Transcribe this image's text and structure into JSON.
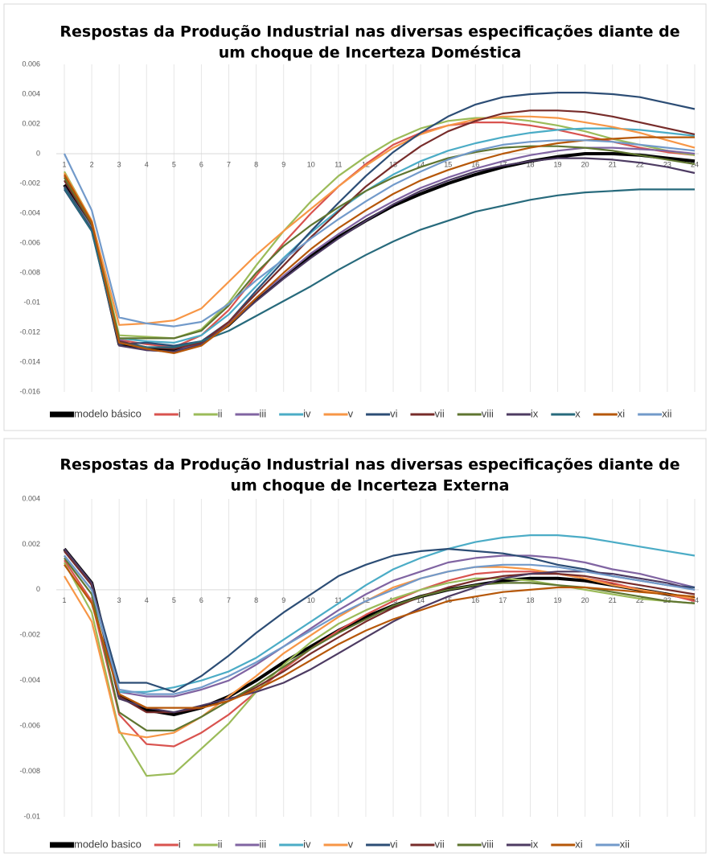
{
  "chart_data": [
    {
      "type": "line",
      "title": [
        "Respostas da Produção Industrial nas diversas especificações  diante de",
        "um choque de Incerteza Doméstica"
      ],
      "categories": [
        1,
        2,
        3,
        4,
        5,
        6,
        7,
        8,
        9,
        10,
        11,
        12,
        13,
        14,
        15,
        16,
        17,
        18,
        19,
        20,
        21,
        22,
        23,
        24
      ],
      "ylim": [
        -0.016,
        0.006
      ],
      "yticks": [
        0.006,
        0.004,
        0.002,
        0,
        -0.002,
        -0.004,
        -0.006,
        -0.008,
        -0.01,
        -0.012,
        -0.014,
        -0.016
      ],
      "grid": true,
      "legend": "bottom",
      "series": [
        {
          "name": "modelo básico",
          "color": "#000000",
          "values": [
            -0.0021,
            -0.0048,
            -0.0128,
            -0.0131,
            -0.0132,
            -0.0127,
            -0.0115,
            -0.0098,
            -0.0083,
            -0.0069,
            -0.0056,
            -0.0045,
            -0.0035,
            -0.0027,
            -0.002,
            -0.0014,
            -0.0009,
            -0.0005,
            -0.0002,
            0,
            0,
            -0.0001,
            -0.0003,
            -0.0005
          ]
        },
        {
          "name": "i",
          "color": "#d9534f",
          "values": [
            -0.0015,
            -0.0045,
            -0.0125,
            -0.0128,
            -0.013,
            -0.0122,
            -0.0105,
            -0.0082,
            -0.006,
            -0.004,
            -0.0022,
            -0.0007,
            0.0006,
            0.0014,
            0.0019,
            0.0021,
            0.0021,
            0.0019,
            0.0016,
            0.0012,
            0.0008,
            0.0004,
            0.0001,
            -0.0001
          ]
        },
        {
          "name": "ii",
          "color": "#9bbb59",
          "values": [
            -0.0012,
            -0.0045,
            -0.0122,
            -0.0123,
            -0.0124,
            -0.0118,
            -0.01,
            -0.0075,
            -0.0052,
            -0.0032,
            -0.0015,
            -0.0002,
            0.0009,
            0.0017,
            0.0022,
            0.0024,
            0.0024,
            0.0022,
            0.0019,
            0.0015,
            0.001,
            0.0006,
            0.0002,
            -0.0001
          ]
        },
        {
          "name": "iii",
          "color": "#8064a2",
          "values": [
            -0.0022,
            -0.005,
            -0.0125,
            -0.0132,
            -0.0133,
            -0.0127,
            -0.0114,
            -0.0097,
            -0.0082,
            -0.0067,
            -0.0054,
            -0.0042,
            -0.0032,
            -0.0023,
            -0.0016,
            -0.001,
            -0.0005,
            -0.0001,
            0.0002,
            0.0004,
            0.0004,
            0.0003,
            0.0002,
            0
          ]
        },
        {
          "name": "iv",
          "color": "#4bacc6",
          "values": [
            -0.0022,
            -0.005,
            -0.0124,
            -0.0126,
            -0.0127,
            -0.0122,
            -0.0108,
            -0.0089,
            -0.007,
            -0.0053,
            -0.0038,
            -0.0025,
            -0.0014,
            -0.0005,
            0.0002,
            0.0007,
            0.0011,
            0.0014,
            0.0016,
            0.0017,
            0.0017,
            0.0016,
            0.0014,
            0.0012
          ]
        },
        {
          "name": "v",
          "color": "#f79646",
          "values": [
            -0.0013,
            -0.0045,
            -0.0115,
            -0.0114,
            -0.0112,
            -0.0104,
            -0.0086,
            -0.0068,
            -0.0052,
            -0.0037,
            -0.0022,
            -0.0008,
            0.0004,
            0.0013,
            0.0019,
            0.0023,
            0.0025,
            0.0025,
            0.0024,
            0.0021,
            0.0018,
            0.0014,
            0.0009,
            0.0004
          ]
        },
        {
          "name": "vi",
          "color": "#2c4d75",
          "values": [
            -0.0024,
            -0.0052,
            -0.0128,
            -0.0127,
            -0.0129,
            -0.0126,
            -0.0113,
            -0.0092,
            -0.0072,
            -0.0052,
            -0.0033,
            -0.0015,
            0.0001,
            0.0014,
            0.0025,
            0.0033,
            0.0038,
            0.004,
            0.0041,
            0.0041,
            0.004,
            0.0038,
            0.0034,
            0.003
          ]
        },
        {
          "name": "vii",
          "color": "#772c2a",
          "values": [
            -0.0018,
            -0.0048,
            -0.0126,
            -0.013,
            -0.0131,
            -0.0127,
            -0.0113,
            -0.0094,
            -0.0075,
            -0.0056,
            -0.0039,
            -0.0022,
            -0.0008,
            0.0005,
            0.0015,
            0.0022,
            0.0027,
            0.0029,
            0.0029,
            0.0028,
            0.0025,
            0.0021,
            0.0017,
            0.0013
          ]
        },
        {
          "name": "viii",
          "color": "#5f7530",
          "values": [
            -0.0016,
            -0.0047,
            -0.0124,
            -0.0124,
            -0.0124,
            -0.0119,
            -0.0102,
            -0.008,
            -0.0062,
            -0.0048,
            -0.0036,
            -0.0025,
            -0.0016,
            -0.0009,
            -0.0003,
            0.0001,
            0.0004,
            0.0005,
            0.0005,
            0.0004,
            0.0002,
            -0.0001,
            -0.0004,
            -0.0007
          ]
        },
        {
          "name": "ix",
          "color": "#4d3b62",
          "values": [
            -0.0022,
            -0.0051,
            -0.0129,
            -0.0132,
            -0.0133,
            -0.0128,
            -0.0115,
            -0.0099,
            -0.0084,
            -0.007,
            -0.0057,
            -0.0045,
            -0.0034,
            -0.0025,
            -0.0018,
            -0.0012,
            -0.0008,
            -0.0005,
            -0.0003,
            -0.0003,
            -0.0004,
            -0.0006,
            -0.0009,
            -0.0013
          ]
        },
        {
          "name": "x",
          "color": "#276a7c",
          "values": [
            -0.0023,
            -0.0052,
            -0.0127,
            -0.013,
            -0.013,
            -0.0126,
            -0.0119,
            -0.0109,
            -0.0099,
            -0.0089,
            -0.0078,
            -0.0068,
            -0.0059,
            -0.0051,
            -0.0045,
            -0.0039,
            -0.0035,
            -0.0031,
            -0.0028,
            -0.0026,
            -0.0025,
            -0.0024,
            -0.0024,
            -0.0024
          ]
        },
        {
          "name": "xi",
          "color": "#b65708",
          "values": [
            -0.0014,
            -0.0046,
            -0.0127,
            -0.0131,
            -0.0134,
            -0.0129,
            -0.0115,
            -0.0097,
            -0.008,
            -0.0064,
            -0.005,
            -0.0038,
            -0.0027,
            -0.0018,
            -0.0011,
            -0.0005,
            0,
            0.0004,
            0.0007,
            0.0009,
            0.001,
            0.0011,
            0.0011,
            0.0011
          ]
        },
        {
          "name": "xii",
          "color": "#729aca",
          "values": [
            0,
            -0.0038,
            -0.011,
            -0.0114,
            -0.0116,
            -0.0113,
            -0.0101,
            -0.0085,
            -0.0071,
            -0.0057,
            -0.0044,
            -0.0032,
            -0.0021,
            -0.0012,
            -0.0004,
            0.0002,
            0.0006,
            0.0008,
            0.0009,
            0.0009,
            0.0008,
            0.0006,
            0.0004,
            0.0002
          ]
        }
      ]
    },
    {
      "type": "line",
      "title": [
        "Respostas da Produção Industrial nas diversas especificações  diante de",
        "um choque de Incerteza Externa"
      ],
      "categories": [
        1,
        2,
        3,
        4,
        5,
        6,
        7,
        8,
        9,
        10,
        11,
        12,
        13,
        14,
        15,
        16,
        17,
        18,
        19,
        20,
        21,
        22,
        23,
        24
      ],
      "ylim": [
        -0.01,
        0.004
      ],
      "yticks": [
        0.004,
        0.002,
        0,
        -0.002,
        -0.004,
        -0.006,
        -0.008,
        -0.01
      ],
      "grid": true,
      "legend": "bottom",
      "series": [
        {
          "name": "modelo basico",
          "color": "#000000",
          "values": [
            0.0018,
            0.0003,
            -0.0047,
            -0.0053,
            -0.0055,
            -0.0052,
            -0.0047,
            -0.004,
            -0.0032,
            -0.0025,
            -0.0018,
            -0.0012,
            -0.0007,
            -0.0003,
            0,
            0.0002,
            0.0004,
            0.0005,
            0.0005,
            0.0004,
            0.0002,
            0,
            -0.0002,
            -0.0004
          ]
        },
        {
          "name": "i",
          "color": "#d9534f",
          "values": [
            0.0013,
            -0.0005,
            -0.0055,
            -0.0068,
            -0.0069,
            -0.0063,
            -0.0055,
            -0.0045,
            -0.0035,
            -0.0026,
            -0.0018,
            -0.0011,
            -0.0005,
            0,
            0.0004,
            0.0007,
            0.0008,
            0.0008,
            0.0007,
            0.0005,
            0.0003,
            0,
            -0.0002,
            -0.0005
          ]
        },
        {
          "name": "ii",
          "color": "#9bbb59",
          "values": [
            0.0012,
            -0.001,
            -0.0062,
            -0.0082,
            -0.0081,
            -0.007,
            -0.0059,
            -0.0045,
            -0.0033,
            -0.0023,
            -0.0015,
            -0.0009,
            -0.0004,
            0,
            0.0003,
            0.0005,
            0.0005,
            0.0004,
            0.0002,
            0,
            -0.0002,
            -0.0004,
            -0.0005,
            -0.0006
          ]
        },
        {
          "name": "iii",
          "color": "#8064a2",
          "values": [
            0.0015,
            0,
            -0.0045,
            -0.0047,
            -0.0047,
            -0.0044,
            -0.004,
            -0.0033,
            -0.0025,
            -0.0017,
            -0.0009,
            -0.0002,
            0.0004,
            0.0008,
            0.0012,
            0.0014,
            0.0015,
            0.0015,
            0.0014,
            0.0012,
            0.0009,
            0.0007,
            0.0004,
            0.0001
          ]
        },
        {
          "name": "iv",
          "color": "#4bacc6",
          "values": [
            0.0015,
            0,
            -0.0045,
            -0.0045,
            -0.0043,
            -0.004,
            -0.0036,
            -0.003,
            -0.0022,
            -0.0014,
            -0.0006,
            0.0002,
            0.0009,
            0.0014,
            0.0018,
            0.0021,
            0.0023,
            0.0024,
            0.0024,
            0.0023,
            0.0021,
            0.0019,
            0.0017,
            0.0015
          ]
        },
        {
          "name": "v",
          "color": "#f79646",
          "values": [
            0.0006,
            -0.0014,
            -0.0063,
            -0.0065,
            -0.0063,
            -0.0056,
            -0.0047,
            -0.0038,
            -0.0028,
            -0.002,
            -0.0012,
            -0.0005,
            0.0001,
            0.0005,
            0.0008,
            0.001,
            0.001,
            0.0009,
            0.0007,
            0.0005,
            0.0002,
            0,
            -0.0002,
            -0.0004
          ]
        },
        {
          "name": "vi",
          "color": "#2c4d75",
          "values": [
            0.0017,
            0.0002,
            -0.0041,
            -0.0041,
            -0.0045,
            -0.0038,
            -0.0029,
            -0.0019,
            -0.001,
            -0.0002,
            0.0006,
            0.0011,
            0.0015,
            0.0017,
            0.0018,
            0.0017,
            0.0016,
            0.0014,
            0.0011,
            0.0009,
            0.0006,
            0.0004,
            0.0002,
            0.0001
          ]
        },
        {
          "name": "vii",
          "color": "#772c2a",
          "values": [
            0.0017,
            0.0002,
            -0.0047,
            -0.0054,
            -0.0054,
            -0.0052,
            -0.0049,
            -0.0043,
            -0.0036,
            -0.0028,
            -0.0021,
            -0.0014,
            -0.0008,
            -0.0003,
            0.0001,
            0.0004,
            0.0006,
            0.0007,
            0.0007,
            0.0006,
            0.0004,
            0.0002,
            0,
            -0.0002
          ]
        },
        {
          "name": "viii",
          "color": "#5f7530",
          "values": [
            0.0014,
            -0.0002,
            -0.0054,
            -0.0062,
            -0.0062,
            -0.0056,
            -0.0049,
            -0.0042,
            -0.0034,
            -0.0026,
            -0.0019,
            -0.0013,
            -0.0007,
            -0.0003,
            0,
            0.0002,
            0.0003,
            0.0003,
            0.0002,
            0.0001,
            -0.0001,
            -0.0003,
            -0.0005,
            -0.0006
          ]
        },
        {
          "name": "ix",
          "color": "#4d3b62",
          "values": [
            0.0018,
            0.0003,
            -0.0048,
            -0.0052,
            -0.0054,
            -0.0051,
            -0.0048,
            -0.0045,
            -0.0041,
            -0.0035,
            -0.0028,
            -0.0021,
            -0.0014,
            -0.0008,
            -0.0003,
            0.0001,
            0.0005,
            0.0007,
            0.0008,
            0.0008,
            0.0007,
            0.0005,
            0.0003,
            0
          ]
        },
        {
          "name": "xi",
          "color": "#b65708",
          "values": [
            0.0011,
            -0.0006,
            -0.0046,
            -0.0052,
            -0.0052,
            -0.0052,
            -0.0049,
            -0.0044,
            -0.0038,
            -0.0031,
            -0.0024,
            -0.0018,
            -0.0013,
            -0.0009,
            -0.0005,
            -0.0003,
            -0.0001,
            0,
            0.0001,
            0.0001,
            0,
            -0.0001,
            -0.0002,
            -0.0003
          ]
        },
        {
          "name": "xii",
          "color": "#729aca",
          "values": [
            0.0015,
            0,
            -0.0044,
            -0.0046,
            -0.0046,
            -0.0043,
            -0.0038,
            -0.0032,
            -0.0025,
            -0.0018,
            -0.0011,
            -0.0005,
            0,
            0.0005,
            0.0008,
            0.001,
            0.0011,
            0.0011,
            0.001,
            0.0008,
            0.0006,
            0.0004,
            0.0002,
            0
          ]
        }
      ]
    }
  ]
}
